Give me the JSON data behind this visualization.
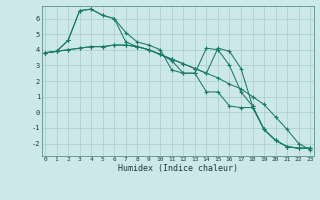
{
  "xlabel": "Humidex (Indice chaleur)",
  "background_color": "#cce8e8",
  "line_color": "#1a7a6a",
  "grid_color": "#aacccc",
  "yticks": [
    -2,
    -1,
    0,
    1,
    2,
    3,
    4,
    5,
    6
  ],
  "xticks": [
    0,
    1,
    2,
    3,
    4,
    5,
    6,
    7,
    8,
    9,
    10,
    11,
    12,
    13,
    14,
    15,
    16,
    17,
    18,
    19,
    20,
    21,
    22,
    23
  ],
  "xlim": [
    -0.3,
    23.3
  ],
  "ylim": [
    -2.8,
    6.8
  ],
  "line1_x": [
    0,
    1,
    2,
    3,
    4,
    5,
    6,
    7,
    8,
    9,
    10,
    11,
    12,
    13,
    14,
    15,
    16,
    17,
    18,
    19,
    20,
    21,
    22,
    23
  ],
  "line1_y": [
    3.8,
    3.9,
    4.6,
    6.5,
    6.6,
    6.2,
    6.0,
    5.1,
    4.5,
    4.3,
    4.0,
    2.7,
    2.5,
    2.5,
    4.1,
    4.0,
    3.0,
    1.3,
    0.4,
    -1.1,
    -1.8,
    -2.2,
    -2.3,
    -2.3
  ],
  "line2_x": [
    0,
    1,
    2,
    3,
    4,
    5,
    6,
    7,
    8,
    9,
    10,
    11,
    12,
    13,
    14,
    15,
    16,
    17,
    18,
    19,
    20,
    21,
    22,
    23
  ],
  "line2_y": [
    3.8,
    3.9,
    4.6,
    6.5,
    6.6,
    6.2,
    6.0,
    4.5,
    4.2,
    4.0,
    3.7,
    3.3,
    2.5,
    2.5,
    1.3,
    1.3,
    0.4,
    0.3,
    0.3,
    -1.1,
    -1.8,
    -2.2,
    -2.3,
    -2.3
  ],
  "line3_x": [
    0,
    1,
    2,
    3,
    4,
    5,
    6,
    7,
    8,
    9,
    10,
    11,
    12,
    13,
    14,
    15,
    16,
    17,
    18,
    19,
    20,
    21,
    22,
    23
  ],
  "line3_y": [
    3.8,
    3.9,
    4.0,
    4.1,
    4.2,
    4.2,
    4.3,
    4.3,
    4.2,
    4.0,
    3.7,
    3.4,
    3.1,
    2.8,
    2.5,
    2.2,
    1.8,
    1.5,
    1.0,
    0.5,
    -0.3,
    -1.1,
    -2.0,
    -2.4
  ],
  "line4_x": [
    0,
    1,
    2,
    3,
    4,
    5,
    6,
    7,
    8,
    9,
    10,
    11,
    12,
    13,
    14,
    15,
    16,
    17,
    18,
    19,
    20,
    21,
    22,
    23
  ],
  "line4_y": [
    3.8,
    3.9,
    4.0,
    4.1,
    4.2,
    4.2,
    4.3,
    4.3,
    4.2,
    4.0,
    3.7,
    3.4,
    3.1,
    2.8,
    2.5,
    4.1,
    3.9,
    2.8,
    0.4,
    -1.1,
    -1.8,
    -2.2,
    -2.3,
    -2.3
  ]
}
